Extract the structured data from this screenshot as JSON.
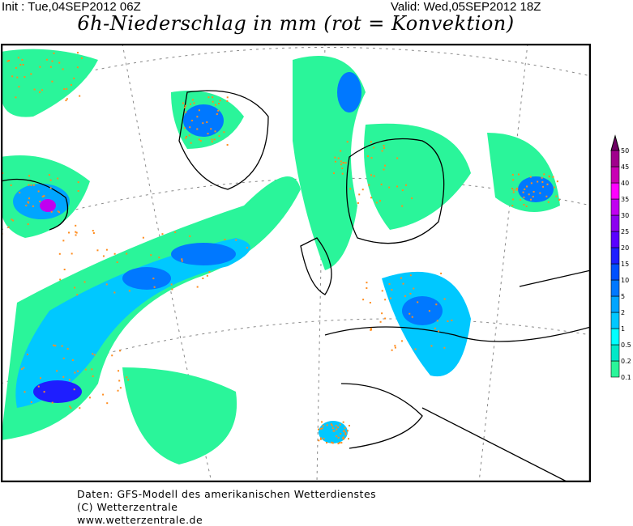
{
  "header": {
    "init": "Init : Tue,04SEP2012 06Z",
    "valid": "Valid: Wed,05SEP2012 18Z",
    "title": "6h-Niederschlag in mm (rot = Konvektion)"
  },
  "legend": {
    "labels": [
      "0.1",
      "0.2",
      "0.5",
      "1",
      "2",
      "5",
      "10",
      "15",
      "20",
      "25",
      "30",
      "35",
      "40",
      "45",
      "50"
    ],
    "colors": [
      "#2af59a",
      "#00e8c8",
      "#00ffff",
      "#00c8ff",
      "#00a5ff",
      "#0078ff",
      "#0050ff",
      "#1e1eff",
      "#5a00ff",
      "#8c00f0",
      "#c000f0",
      "#ff00ff",
      "#c800b4",
      "#a0008c",
      "#6e0064"
    ],
    "convection_dot_color": "#ff8c1e"
  },
  "footer": {
    "line1": "Daten: GFS-Modell des amerikanischen Wetterdienstes",
    "line2": "(C) Wetterzentrale",
    "line3": "www.wetterzentrale.de"
  }
}
